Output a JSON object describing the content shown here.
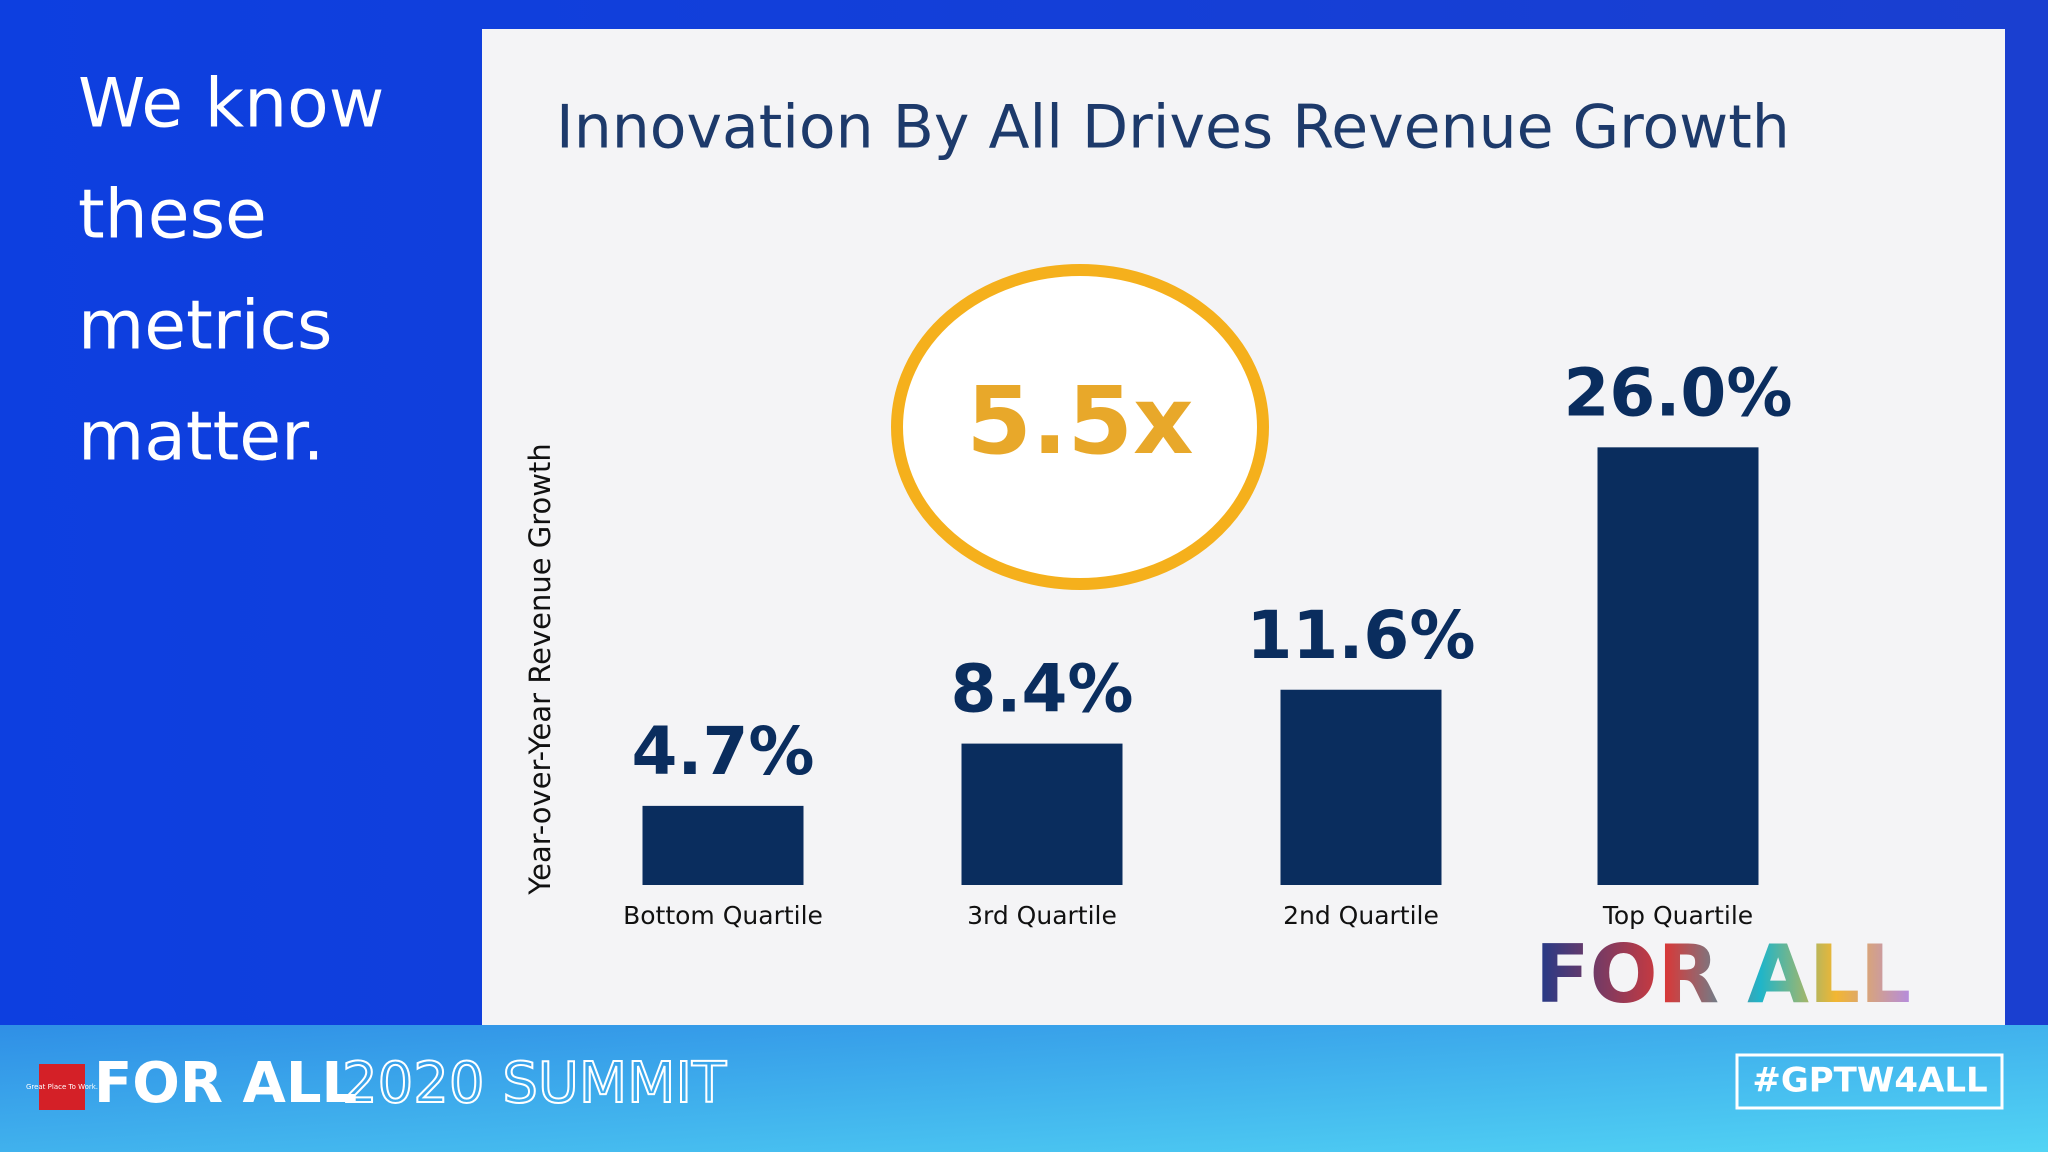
{
  "chart_data": {
    "type": "bar",
    "title": "Innovation By All Drives Revenue Growth",
    "y_label": "Year-over-Year Revenue Growth",
    "categories": [
      "Bottom Quartile",
      "3rd Quartile",
      "2nd Quartile",
      "Top Quartile"
    ],
    "values": [
      4.7,
      8.4,
      11.6,
      26.0
    ],
    "value_labels": [
      "4.7%",
      "8.4%",
      "11.6%",
      "26.0%"
    ],
    "color": "#0a2d5e",
    "ylim": [
      0,
      30
    ],
    "grid": false,
    "annotations": [
      "5.5x"
    ]
  },
  "sidebar": {
    "lines": [
      "We know",
      "these",
      "metrics",
      "matter."
    ]
  },
  "footer": {
    "logo": "Great Place To Work.",
    "brand": "FOR ALL",
    "event": "2020 SUMMIT",
    "hashtag": "#GPTW4ALL"
  },
  "badge": "FOR ALL"
}
